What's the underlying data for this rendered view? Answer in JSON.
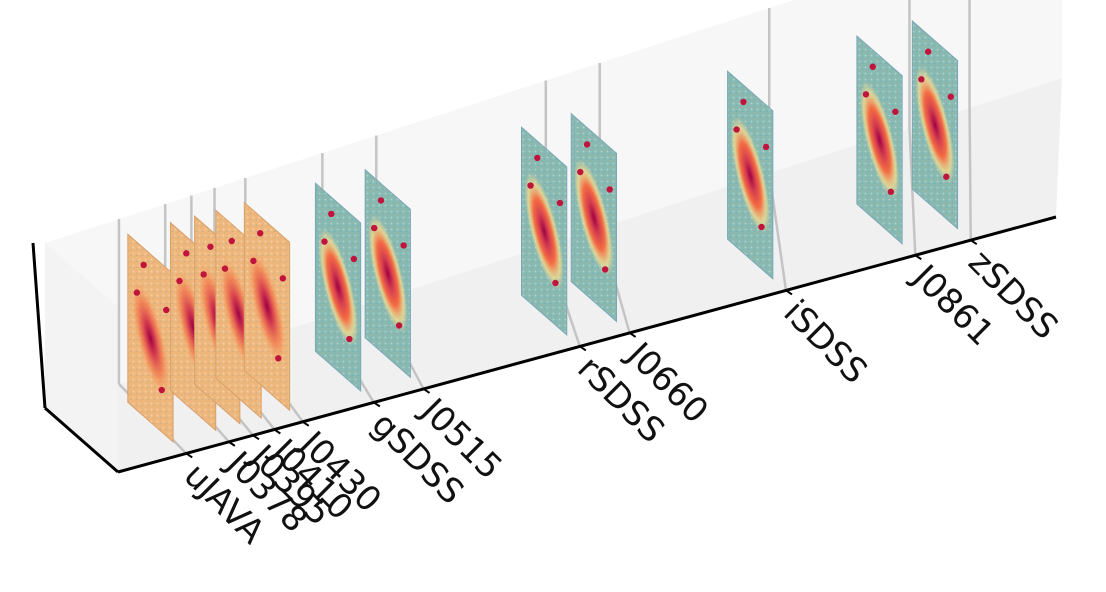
{
  "chart_data": {
    "type": "image_stack_3d",
    "x_categories": [
      "uJAVA",
      "J0378",
      "J0395",
      "J0410",
      "J0430",
      "gSDSS",
      "J0515",
      "rSDSS",
      "J0660",
      "iSDSS",
      "J0861",
      "zSDSS"
    ],
    "x_positions": [
      348,
      378,
      395,
      410,
      430,
      480,
      515,
      625,
      660,
      770,
      861,
      900
    ],
    "x_range": [
      300,
      960
    ],
    "panel_style": [
      "warm",
      "warm",
      "warm",
      "warm",
      "warm",
      "cool",
      "cool",
      "cool",
      "cool",
      "cool",
      "cool",
      "cool"
    ],
    "grid": true,
    "colors": {
      "pane_floor": "#f0f0f0",
      "pane_back": "#f7f7f7",
      "gridline": "#c4c4c4",
      "axis": "#000000",
      "colormap": [
        "#5e4fa2",
        "#3288bd",
        "#66c2a5",
        "#abdda4",
        "#e6f598",
        "#fee08b",
        "#fdae61",
        "#f46d43",
        "#d53e4f",
        "#9e0142"
      ]
    }
  }
}
